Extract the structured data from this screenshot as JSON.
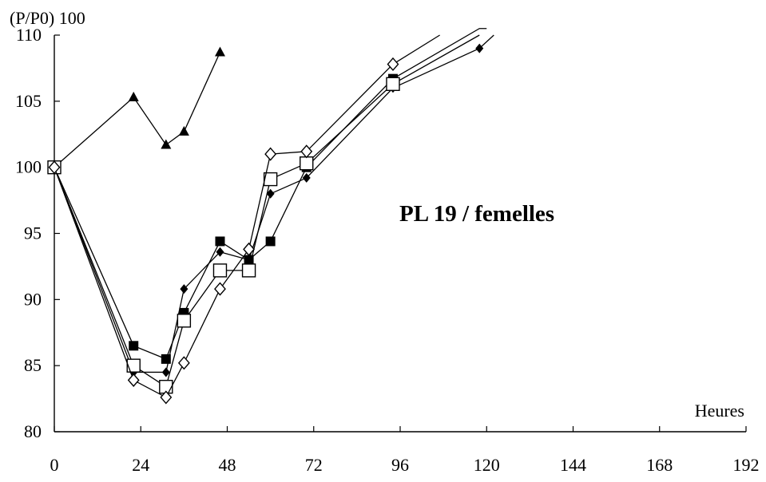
{
  "chart_data": {
    "type": "line",
    "title": "",
    "annotation": "PL 19 / femelles",
    "ylabel": "(P/P0) 100",
    "xlabel": "Heures",
    "xlim": [
      0,
      192
    ],
    "ylim": [
      80,
      110
    ],
    "xticks": [
      0,
      24,
      48,
      72,
      96,
      120,
      144,
      168,
      192
    ],
    "yticks": [
      80,
      85,
      90,
      95,
      100,
      105,
      110
    ],
    "grid": false,
    "legend": "none",
    "series": [
      {
        "marker": "filled-triangle",
        "points": [
          [
            0,
            100
          ],
          [
            22,
            105.3
          ],
          [
            31,
            101.7
          ],
          [
            36,
            102.7
          ],
          [
            46,
            108.7
          ]
        ]
      },
      {
        "marker": "filled-square",
        "points": [
          [
            0,
            100
          ],
          [
            22,
            86.5
          ],
          [
            31,
            85.5
          ],
          [
            36,
            89
          ],
          [
            46,
            94.4
          ],
          [
            54,
            93
          ],
          [
            60,
            94.4
          ],
          [
            70,
            100
          ],
          [
            94,
            106.7
          ],
          [
            118,
            110.5
          ]
        ],
        "extends_to": [
          120,
          110.5
        ]
      },
      {
        "marker": "filled-diamond",
        "points": [
          [
            0,
            100
          ],
          [
            22,
            84.5
          ],
          [
            31,
            84.5
          ],
          [
            36,
            90.8
          ],
          [
            46,
            93.6
          ],
          [
            54,
            93
          ],
          [
            60,
            98
          ],
          [
            70,
            99.2
          ],
          [
            94,
            106
          ],
          [
            118,
            109
          ]
        ],
        "extends_to": [
          122,
          110
        ]
      },
      {
        "marker": "open-square",
        "points": [
          [
            0,
            100
          ],
          [
            22,
            85
          ],
          [
            31,
            83.4
          ],
          [
            36,
            88.4
          ],
          [
            46,
            92.2
          ],
          [
            54,
            92.2
          ],
          [
            60,
            99.1
          ],
          [
            70,
            100.3
          ],
          [
            94,
            106.3
          ]
        ],
        "extends_to": [
          118,
          110
        ]
      },
      {
        "marker": "open-diamond",
        "points": [
          [
            0,
            100
          ],
          [
            22,
            83.9
          ],
          [
            31,
            82.6
          ],
          [
            36,
            85.2
          ],
          [
            46,
            90.8
          ],
          [
            54,
            93.8
          ],
          [
            60,
            101
          ],
          [
            70,
            101.2
          ],
          [
            94,
            107.8
          ]
        ],
        "extends_to": [
          107,
          110
        ]
      }
    ]
  }
}
